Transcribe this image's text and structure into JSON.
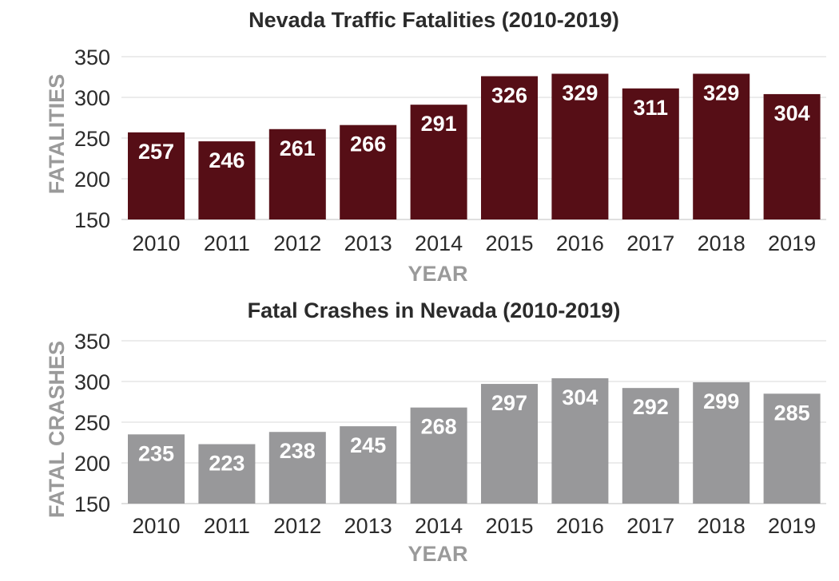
{
  "chart_data": [
    {
      "type": "bar",
      "title": "Nevada Traffic Fatalities (2010-2019)",
      "xlabel": "YEAR",
      "ylabel": "FATALITIES",
      "categories": [
        "2010",
        "2011",
        "2012",
        "2013",
        "2014",
        "2015",
        "2016",
        "2017",
        "2018",
        "2019"
      ],
      "values": [
        257,
        246,
        261,
        266,
        291,
        326,
        329,
        311,
        329,
        304
      ],
      "ylim": [
        150,
        350
      ],
      "yticks": [
        150,
        200,
        250,
        300,
        350
      ],
      "grid": true,
      "color": "#560e16"
    },
    {
      "type": "bar",
      "title": "Fatal Crashes in Nevada (2010-2019)",
      "xlabel": "YEAR",
      "ylabel": "FATAL CRASHES",
      "categories": [
        "2010",
        "2011",
        "2012",
        "2013",
        "2014",
        "2015",
        "2016",
        "2017",
        "2018",
        "2019"
      ],
      "values": [
        235,
        223,
        238,
        245,
        268,
        297,
        304,
        292,
        299,
        285
      ],
      "ylim": [
        150,
        350
      ],
      "yticks": [
        150,
        200,
        250,
        300,
        350
      ],
      "grid": true,
      "color": "#98989a"
    }
  ]
}
